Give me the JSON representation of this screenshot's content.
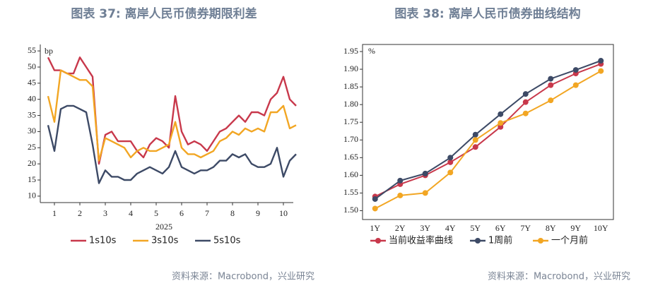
{
  "chart_data": [
    {
      "type": "line",
      "title": "图表 37: 离岸人民币债券期限利差",
      "y_unit": "bp",
      "x_label": "2025",
      "source": "资料来源：Macrobond，兴业研究",
      "categories": [
        null,
        "1",
        null,
        null,
        null,
        "2",
        null,
        null,
        null,
        "3",
        null,
        null,
        null,
        "4",
        null,
        null,
        null,
        "5",
        null,
        null,
        null,
        "6",
        null,
        null,
        null,
        "7",
        null,
        null,
        null,
        "8",
        null,
        null,
        null,
        "9",
        null,
        null,
        null,
        "10",
        null,
        null
      ],
      "series": [
        {
          "name": "1s10s",
          "color": "#c8384b",
          "values": [
            53,
            49,
            49,
            48,
            48,
            53,
            50,
            47,
            20,
            29,
            30,
            27,
            27,
            27,
            24,
            22,
            26,
            28,
            27,
            25,
            41,
            30,
            26,
            27,
            26,
            24,
            27,
            30,
            31,
            33,
            35,
            33,
            36,
            36,
            35,
            40,
            42,
            47,
            40,
            38
          ]
        },
        {
          "name": "3s10s",
          "color": "#f2a623",
          "values": [
            41,
            33,
            49,
            48,
            47,
            46,
            46,
            44,
            21,
            28,
            27,
            26,
            25,
            22,
            24,
            25,
            24,
            24,
            25,
            26,
            33,
            25,
            23,
            23,
            22,
            23,
            24,
            27,
            28,
            30,
            29,
            31,
            30,
            31,
            30,
            36,
            36,
            38,
            31,
            32
          ]
        },
        {
          "name": "5s10s",
          "color": "#3d4a66",
          "values": [
            32,
            24,
            37,
            38,
            38,
            37,
            36,
            26,
            14,
            18,
            16,
            16,
            15,
            15,
            17,
            18,
            19,
            18,
            17,
            19,
            24,
            19,
            18,
            17,
            18,
            18,
            19,
            21,
            21,
            23,
            22,
            23,
            20,
            19,
            19,
            20,
            25,
            16,
            21,
            23
          ]
        }
      ],
      "ylim": [
        8,
        57
      ],
      "yticks": [
        10,
        15,
        20,
        25,
        30,
        35,
        40,
        45,
        50,
        55
      ],
      "markers": false,
      "frame": false
    },
    {
      "type": "line",
      "title": "图表 38: 离岸人民币债券曲线结构",
      "y_unit": "%",
      "source": "资料来源：Macrobond，兴业研究",
      "categories": [
        "1Y",
        "2Y",
        "3Y",
        "4Y",
        "5Y",
        "6Y",
        "7Y",
        "8Y",
        "9Y",
        "10Y"
      ],
      "series": [
        {
          "name": "当前收益率曲线",
          "color": "#c8384b",
          "values": [
            1.54,
            1.575,
            1.6,
            1.637,
            1.68,
            1.737,
            1.807,
            1.855,
            1.888,
            1.915
          ]
        },
        {
          "name": "1周前",
          "color": "#3d4a66",
          "values": [
            1.533,
            1.585,
            1.605,
            1.65,
            1.715,
            1.773,
            1.83,
            1.873,
            1.898,
            1.924
          ]
        },
        {
          "name": "一个月前",
          "color": "#f2a623",
          "values": [
            1.506,
            1.543,
            1.55,
            1.608,
            1.7,
            1.748,
            1.775,
            1.812,
            1.855,
            1.895
          ]
        }
      ],
      "ylim": [
        1.475,
        1.97
      ],
      "yticks": [
        {
          "value": 1.5,
          "label": "1.50"
        },
        {
          "value": 1.55,
          "label": "1.55"
        },
        {
          "value": 1.6,
          "label": "1.60"
        },
        {
          "value": 1.65,
          "label": "1.65"
        },
        {
          "value": 1.7,
          "label": "1.70"
        },
        {
          "value": 1.75,
          "label": "1.75"
        },
        {
          "value": 1.8,
          "label": "1.80"
        },
        {
          "value": 1.85,
          "label": "1.85"
        },
        {
          "value": 1.9,
          "label": "1.90"
        },
        {
          "value": 1.95,
          "label": "1.95"
        }
      ],
      "markers": true,
      "frame": true
    }
  ]
}
